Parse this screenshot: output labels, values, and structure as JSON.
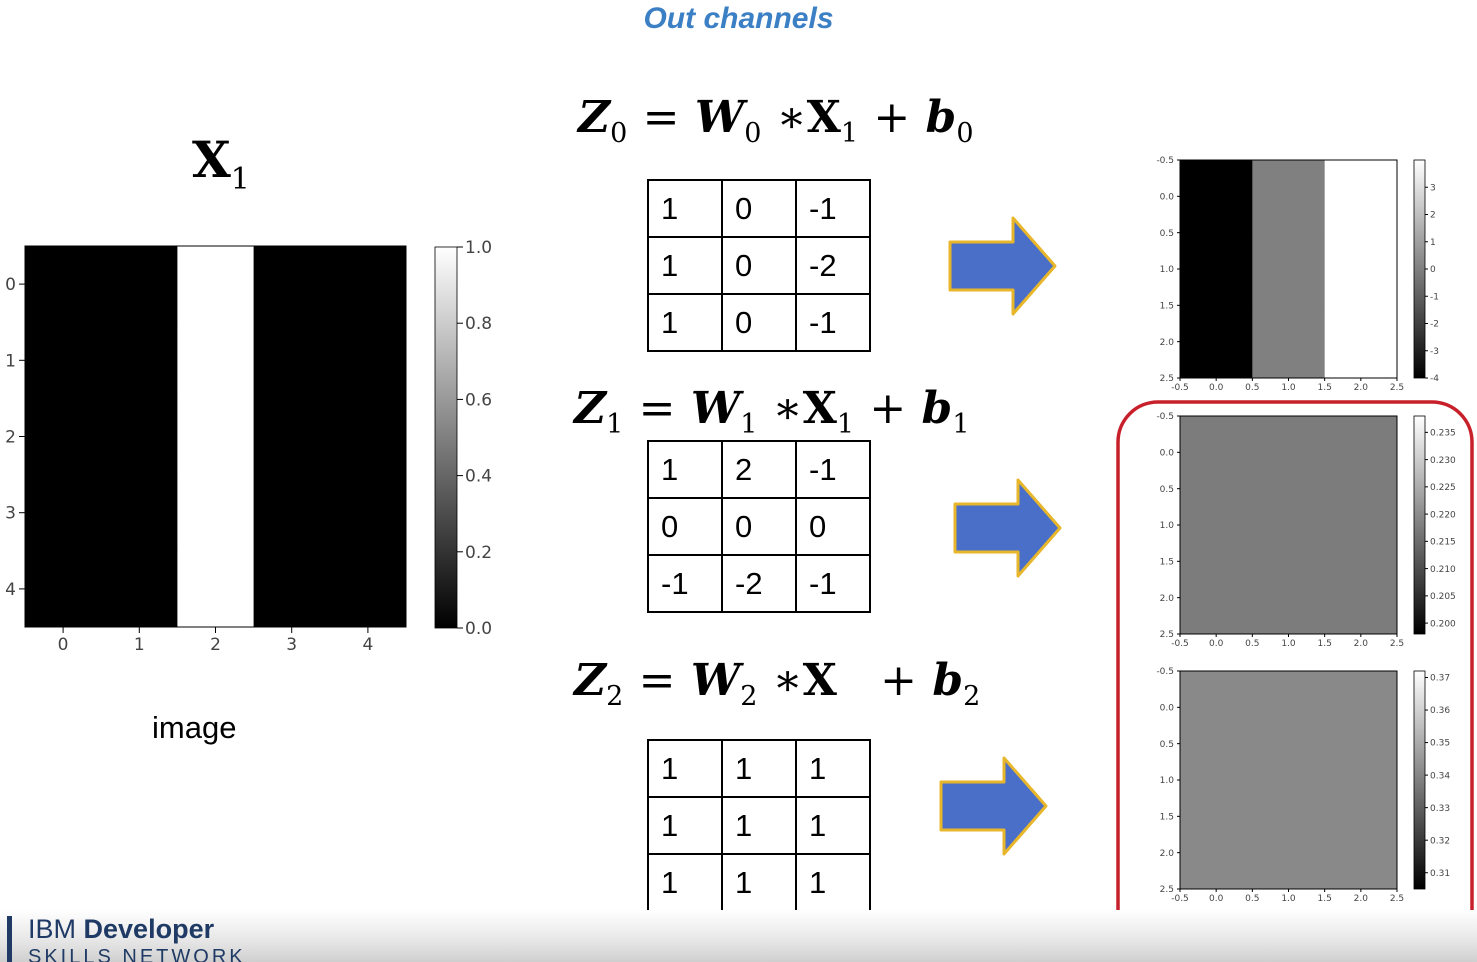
{
  "title": "Out channels",
  "input": {
    "label": "X",
    "label_sub": "1",
    "caption": "image",
    "pixels": [
      [
        0,
        0,
        1,
        0,
        0
      ],
      [
        0,
        0,
        1,
        0,
        0
      ],
      [
        0,
        0,
        1,
        0,
        0
      ],
      [
        0,
        0,
        1,
        0,
        0
      ],
      [
        0,
        0,
        1,
        0,
        0
      ]
    ],
    "x_ticks": [
      "0",
      "1",
      "2",
      "3",
      "4"
    ],
    "y_ticks": [
      "0",
      "1",
      "2",
      "3",
      "4"
    ],
    "colorbar_ticks": [
      "0.0",
      "0.2",
      "0.4",
      "0.6",
      "0.8",
      "1.0"
    ],
    "colorbar_range": [
      0,
      1
    ]
  },
  "channels": [
    {
      "eq": {
        "z": "Z",
        "zi": "0",
        "w": "W",
        "wi": "0",
        "x": "X",
        "xi": "1",
        "b": "b",
        "bi": "0"
      },
      "kernel": [
        [
          "1",
          "0",
          "-1"
        ],
        [
          "1",
          "0",
          "-2"
        ],
        [
          "1",
          "0",
          "-1"
        ]
      ],
      "output": {
        "pixels": [
          [
            -4,
            0,
            4
          ],
          [
            -4,
            0,
            4
          ],
          [
            -4,
            0,
            4
          ]
        ],
        "range": [
          -4,
          4
        ],
        "colorbar_ticks": [
          "-4",
          "-3",
          "-2",
          "-1",
          "0",
          "1",
          "2",
          "3"
        ]
      }
    },
    {
      "eq": {
        "z": "Z",
        "zi": "1",
        "w": "W",
        "wi": "1",
        "x": "X",
        "xi": "1",
        "b": "b",
        "bi": "1"
      },
      "kernel": [
        [
          "1",
          "2",
          "-1"
        ],
        [
          "0",
          "0",
          "0"
        ],
        [
          "-1",
          "-2",
          "-1"
        ]
      ],
      "output": {
        "pixels": [
          [
            0.2175,
            0.2175,
            0.2175
          ],
          [
            0.2175,
            0.2175,
            0.2175
          ],
          [
            0.2175,
            0.2175,
            0.2175
          ]
        ],
        "range": [
          0.198,
          0.238
        ],
        "colorbar_ticks": [
          "0.200",
          "0.205",
          "0.210",
          "0.215",
          "0.220",
          "0.225",
          "0.230",
          "0.235"
        ]
      }
    },
    {
      "eq": {
        "z": "Z",
        "zi": "2",
        "w": "W",
        "wi": "2",
        "x": "X",
        "xi": "",
        "b": "b",
        "bi": "2"
      },
      "kernel": [
        [
          "1",
          "1",
          "1"
        ],
        [
          "1",
          "1",
          "1"
        ],
        [
          "1",
          "1",
          "1"
        ]
      ],
      "output": {
        "pixels": [
          [
            0.341,
            0.341,
            0.341
          ],
          [
            0.341,
            0.341,
            0.341
          ],
          [
            0.341,
            0.341,
            0.341
          ]
        ],
        "range": [
          0.305,
          0.372
        ],
        "colorbar_ticks": [
          "0.31",
          "0.32",
          "0.33",
          "0.34",
          "0.35",
          "0.36",
          "0.37"
        ]
      }
    }
  ],
  "output_axes": {
    "x_ticks": [
      "-0.5",
      "0.0",
      "0.5",
      "1.0",
      "1.5",
      "2.0",
      "2.5"
    ],
    "y_ticks": [
      "-0.5",
      "0.0",
      "0.5",
      "1.0",
      "1.5",
      "2.0",
      "2.5"
    ]
  },
  "colors": {
    "title": "#3b7fc4",
    "arrow": "#4a6fc9",
    "arrow_outline": "#e8b62a",
    "highlight": "#c8202a"
  },
  "footer": {
    "line1_a": "IBM",
    "line1_b": "Developer",
    "line2": "SKILLS NETWORK"
  }
}
